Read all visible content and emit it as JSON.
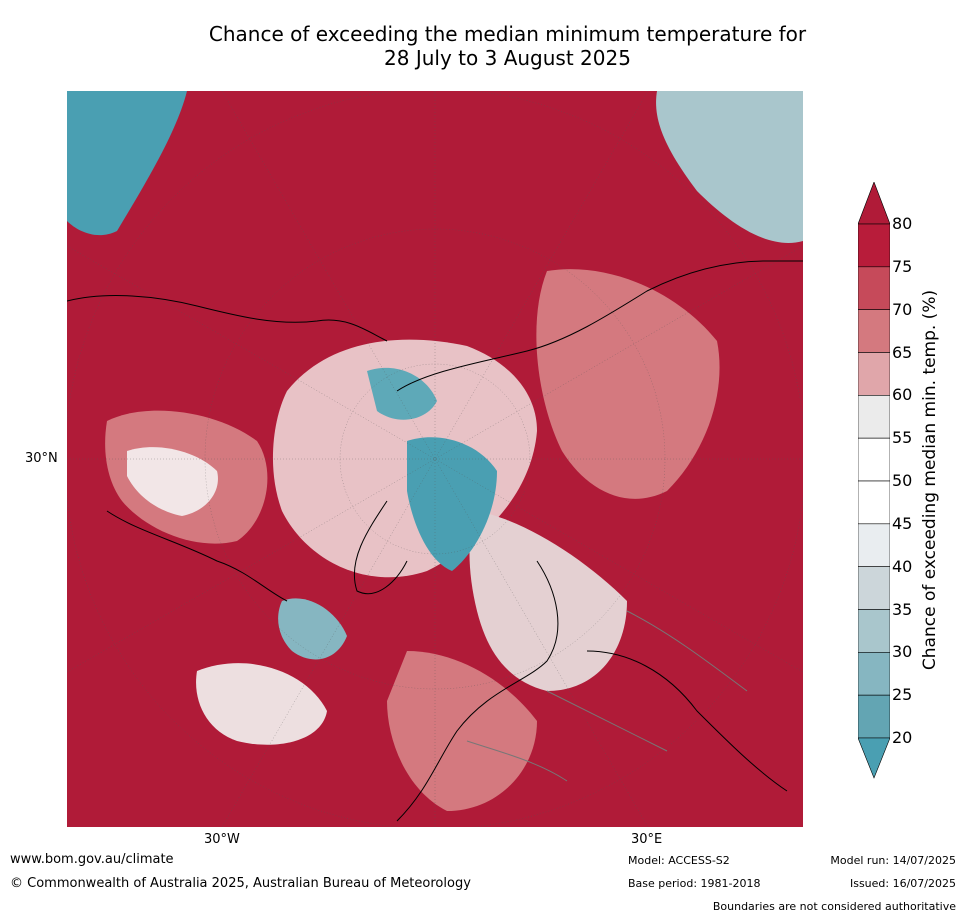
{
  "title_line1": "Chance of exceeding the median minimum temperature for",
  "title_line2": "28 July to 3 August 2025",
  "axis_labels": {
    "lat_30n": "30°N",
    "lon_30w": "30°W",
    "lon_30e": "30°E"
  },
  "colorbar": {
    "title": "Chance of exceeding median min. temp. (%)",
    "ticks": [
      "80",
      "75",
      "70",
      "65",
      "60",
      "55",
      "50",
      "45",
      "40",
      "35",
      "30",
      "25",
      "20"
    ],
    "colors": [
      "#b81c3a",
      "#c64a5a",
      "#d4797f",
      "#e0a6aa",
      "#ebebeb",
      "#ffffff",
      "#ffffff",
      "#e9edf0",
      "#ccd6da",
      "#a9c6cc",
      "#86b6c1",
      "#63a5b3"
    ],
    "over_color": "#b01b38",
    "under_color": "#4a9fb2"
  },
  "footer": {
    "website": "www.bom.gov.au/climate",
    "copyright": "© Commonwealth of Australia 2025, Australian Bureau of Meteorology",
    "model": "Model: ACCESS-S2",
    "base_period": "Base period: 1981-2018",
    "model_run": "Model run: 14/07/2025",
    "issued": "Issued: 16/07/2025",
    "disclaimer": "Boundaries are not considered authoritative"
  },
  "map_colors": {
    "high": "#b01b38",
    "mid_high": "#d4797f",
    "neutral": "#ffffff",
    "low": "#4a9fb2"
  }
}
